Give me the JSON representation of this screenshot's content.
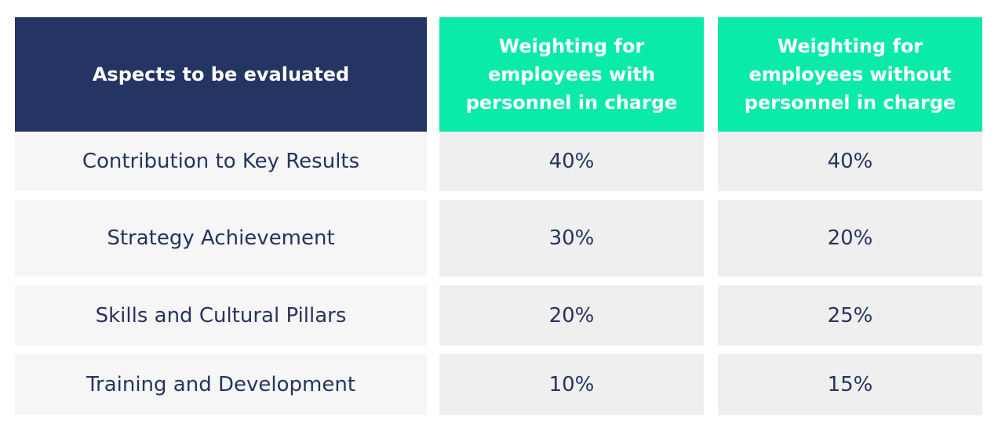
{
  "table": {
    "header": [
      "Aspects to be evaluated",
      "Weighting for employees with personnel in charge",
      "Weighting for employees without personnel in charge"
    ],
    "rows": [
      [
        "Contribution to Key Results",
        "40%",
        "40%"
      ],
      [
        "Strategy Achievement",
        "30%",
        "20%"
      ],
      [
        "Skills and Cultural Pillars",
        "20%",
        "25%"
      ],
      [
        "Training and Development",
        "10%",
        "15%"
      ]
    ]
  }
}
